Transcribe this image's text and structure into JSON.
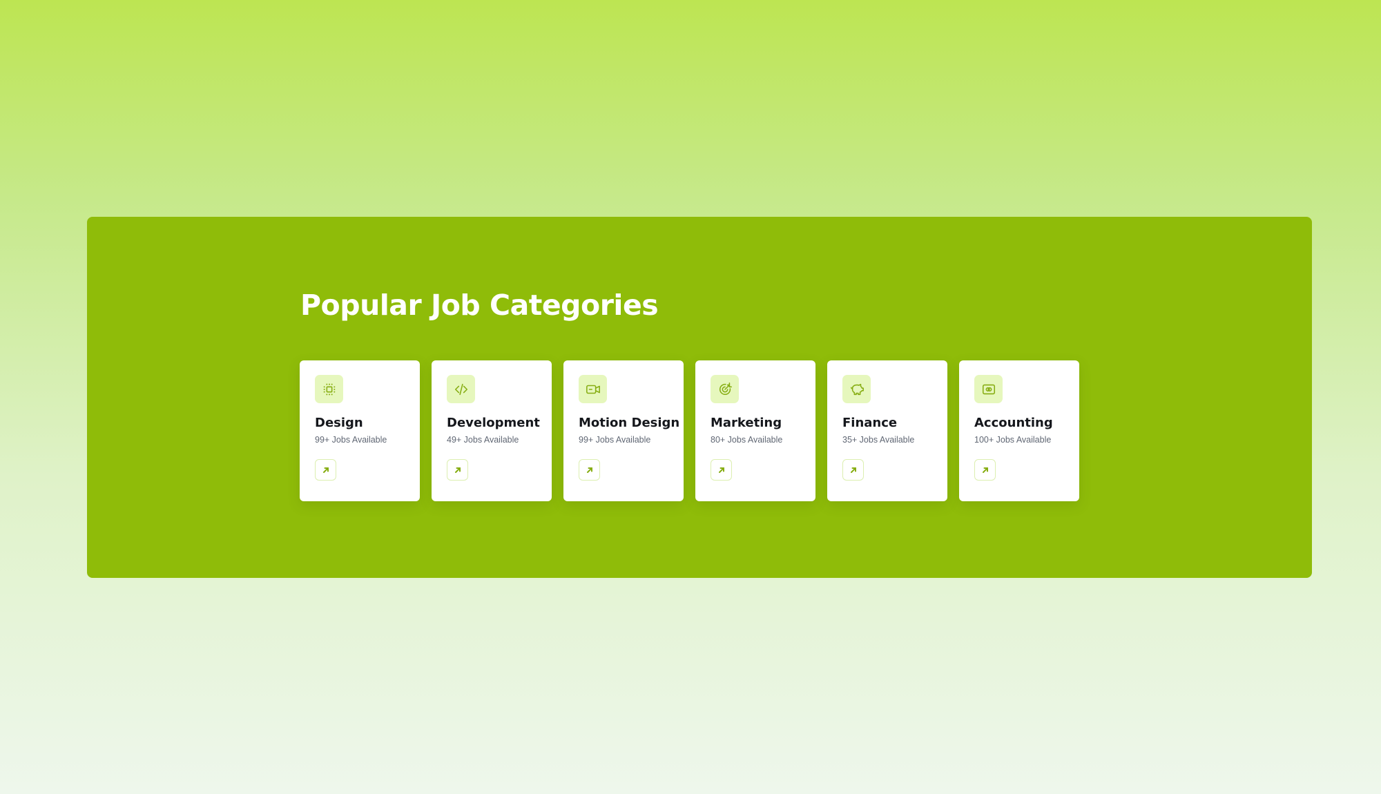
{
  "section": {
    "title": "Popular Job Categories"
  },
  "colors": {
    "panel": "#8fbc09",
    "icon_bg": "#e6f7bd",
    "accent": "#86ad12"
  },
  "categories": [
    {
      "name": "Design",
      "count": "99+ Jobs Available",
      "icon": "layout-grid-icon"
    },
    {
      "name": "Development",
      "count": "49+ Jobs Available",
      "icon": "code-icon"
    },
    {
      "name": "Motion Design",
      "count": "99+ Jobs Available",
      "icon": "video-camera-icon"
    },
    {
      "name": "Marketing",
      "count": "80+ Jobs Available",
      "icon": "target-icon"
    },
    {
      "name": "Finance",
      "count": "35+ Jobs Available",
      "icon": "piggy-bank-icon"
    },
    {
      "name": "Accounting",
      "count": "100+ Jobs Available",
      "icon": "money-icon"
    }
  ]
}
